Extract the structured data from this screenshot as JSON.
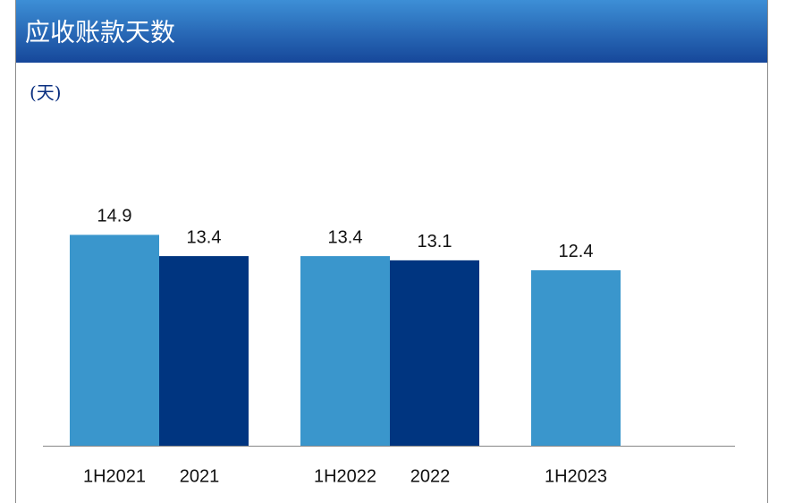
{
  "chart_data": {
    "type": "bar",
    "title": "应收账款天数",
    "unit_label": "(天)",
    "categories": [
      "1H2021",
      "2021",
      "1H2022",
      "2022",
      "1H2023"
    ],
    "values": [
      14.9,
      13.4,
      13.4,
      13.1,
      12.4
    ],
    "colors": [
      "#3a96cc",
      "#003580",
      "#3a96cc",
      "#003580",
      "#3a96cc"
    ],
    "ylim": [
      0,
      16
    ]
  }
}
